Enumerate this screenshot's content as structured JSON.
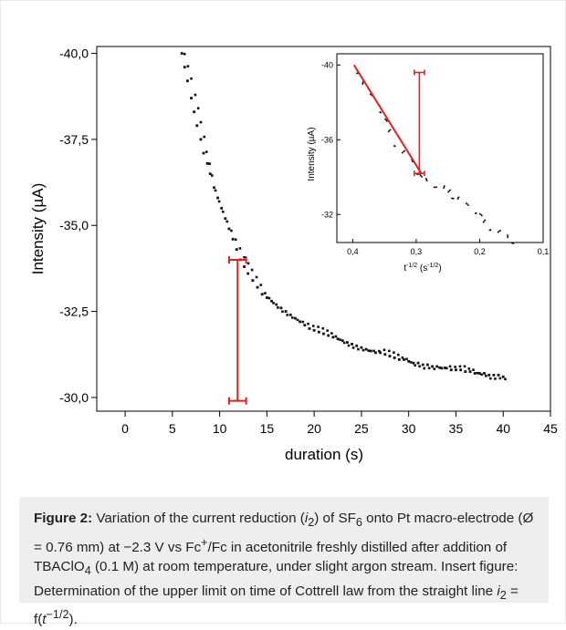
{
  "chart_data": [
    {
      "type": "scatter",
      "xlabel": "duration (s)",
      "ylabel": "Intensity (µA)",
      "xlim": [
        -3,
        45
      ],
      "ylim": [
        -29.6,
        -40.2
      ],
      "x_ticks": [
        "0",
        "5",
        "10",
        "15",
        "20",
        "25",
        "30",
        "35",
        "40",
        "45"
      ],
      "y_ticks": [
        "-40,0",
        "-37,5",
        "-35,0",
        "-32,5",
        "-30,0"
      ],
      "grid": false,
      "marker_color": "#111111",
      "annotation_color": "#dd2222",
      "series": [
        {
          "points": [
            [
              6.0,
              -40.0
            ],
            [
              6.3,
              -39.6
            ],
            [
              6.6,
              -39.2
            ],
            [
              7.0,
              -38.7
            ],
            [
              7.3,
              -38.3
            ],
            [
              7.6,
              -37.9
            ],
            [
              8.0,
              -37.5
            ],
            [
              8.3,
              -37.1
            ],
            [
              8.7,
              -36.8
            ],
            [
              9.0,
              -36.5
            ],
            [
              9.4,
              -36.1
            ],
            [
              9.8,
              -35.8
            ],
            [
              10.2,
              -35.5
            ],
            [
              10.6,
              -35.2
            ],
            [
              11.0,
              -34.9
            ],
            [
              11.4,
              -34.6
            ],
            [
              11.8,
              -34.3
            ],
            [
              12.2,
              -34.0
            ],
            [
              12.6,
              -33.8
            ],
            [
              13.0,
              -33.6
            ],
            [
              13.5,
              -33.4
            ],
            [
              14.0,
              -33.2
            ],
            [
              14.5,
              -33.0
            ],
            [
              15.0,
              -32.9
            ],
            [
              15.5,
              -32.8
            ],
            [
              16.0,
              -32.7
            ],
            [
              16.5,
              -32.6
            ],
            [
              17.0,
              -32.5
            ],
            [
              17.5,
              -32.4
            ],
            [
              18.0,
              -32.3
            ],
            [
              18.5,
              -32.2
            ],
            [
              19.0,
              -32.1
            ],
            [
              19.5,
              -32.0
            ],
            [
              20.0,
              -31.95
            ],
            [
              20.5,
              -31.9
            ],
            [
              21.0,
              -31.85
            ],
            [
              21.5,
              -31.8
            ],
            [
              22.0,
              -31.75
            ],
            [
              22.5,
              -31.7
            ],
            [
              23.0,
              -31.65
            ],
            [
              23.5,
              -31.6
            ],
            [
              24.0,
              -31.55
            ],
            [
              24.5,
              -31.5
            ],
            [
              25.0,
              -31.45
            ],
            [
              25.5,
              -31.4
            ],
            [
              26.0,
              -31.35
            ],
            [
              26.5,
              -31.3
            ],
            [
              27.0,
              -31.3
            ],
            [
              27.5,
              -31.25
            ],
            [
              28.0,
              -31.2
            ],
            [
              28.5,
              -31.15
            ],
            [
              29.0,
              -31.1
            ],
            [
              29.5,
              -31.1
            ],
            [
              30.0,
              -31.05
            ],
            [
              30.5,
              -31.0
            ],
            [
              31.0,
              -31.0
            ],
            [
              31.5,
              -30.95
            ],
            [
              32.0,
              -30.95
            ],
            [
              32.5,
              -30.9
            ],
            [
              33.0,
              -30.9
            ],
            [
              33.5,
              -30.85
            ],
            [
              34.0,
              -30.85
            ],
            [
              34.5,
              -30.8
            ],
            [
              35.0,
              -30.8
            ],
            [
              35.5,
              -30.8
            ],
            [
              36.0,
              -30.75
            ],
            [
              36.5,
              -30.75
            ],
            [
              37.0,
              -30.7
            ],
            [
              37.5,
              -30.7
            ],
            [
              38.0,
              -30.7
            ],
            [
              38.5,
              -30.65
            ],
            [
              39.0,
              -30.65
            ],
            [
              39.5,
              -30.65
            ],
            [
              40.0,
              -30.6
            ]
          ]
        }
      ],
      "annotations": [
        {
          "type": "vertical_marker",
          "x": 11.9,
          "y_from": -34.0,
          "y_to": -29.9,
          "x_error": 0.9
        }
      ]
    },
    {
      "type": "scatter",
      "xlabel_parts": {
        "main": "t",
        "sup": "-1/2",
        "unit_open": " (s",
        "unit_sup": "-1/2",
        "unit_close": ")"
      },
      "ylabel": "Intensity (µA)",
      "xlim": [
        0.425,
        0.1
      ],
      "ylim": [
        -30.5,
        -40.6
      ],
      "x_ticks": [
        "0,4",
        "0,3",
        "0,2",
        "0,1"
      ],
      "y_ticks": [
        "-32",
        "-36",
        "-40"
      ],
      "grid": false,
      "series": [
        {
          "points": [
            [
              0.15,
              -30.6
            ],
            [
              0.16,
              -30.8
            ],
            [
              0.17,
              -31.0
            ],
            [
              0.18,
              -31.3
            ],
            [
              0.19,
              -31.6
            ],
            [
              0.2,
              -31.9
            ],
            [
              0.21,
              -32.2
            ],
            [
              0.22,
              -32.5
            ],
            [
              0.23,
              -32.8
            ],
            [
              0.24,
              -33.0
            ],
            [
              0.25,
              -33.2
            ],
            [
              0.26,
              -33.4
            ],
            [
              0.27,
              -33.6
            ],
            [
              0.28,
              -33.8
            ],
            [
              0.29,
              -34.0
            ],
            [
              0.3,
              -34.3
            ],
            [
              0.31,
              -34.8
            ],
            [
              0.32,
              -35.3
            ],
            [
              0.33,
              -35.8
            ],
            [
              0.34,
              -36.4
            ],
            [
              0.35,
              -37.0
            ],
            [
              0.36,
              -37.6
            ],
            [
              0.37,
              -38.3
            ],
            [
              0.38,
              -39.0
            ],
            [
              0.39,
              -39.7
            ]
          ]
        }
      ],
      "fit_line": {
        "from": [
          0.398,
          -40.0
        ],
        "to": [
          0.292,
          -34.2
        ]
      },
      "annotations": [
        {
          "type": "vertical_marker",
          "x": 0.295,
          "y_from": -34.2,
          "y_to": -39.6,
          "x_error": 0.008
        }
      ]
    }
  ],
  "caption": {
    "label": "Figure 2:",
    "p1": " Variation of the current reduction (",
    "i": "i",
    "sub2": "2",
    "p2": ") of SF",
    "sub6": "6",
    "p3": " onto Pt macro-electrode (Ø = 0.76 mm) at −2.3 V vs Fc",
    "sup_plus": "+",
    "p4": "/Fc in acetonitrile freshly distilled after addition of TBAClO",
    "sub4": "4",
    "p5": " (0.1 M) at room temperature, under slight argon stream. Insert figure: Determination of the upper limit on time of Cottrell law from the straight line ",
    "i2": "i",
    "sub2b": "2",
    "p6": " = f(",
    "t": "t",
    "sup_exp": "−1/2",
    "p7": ")."
  }
}
